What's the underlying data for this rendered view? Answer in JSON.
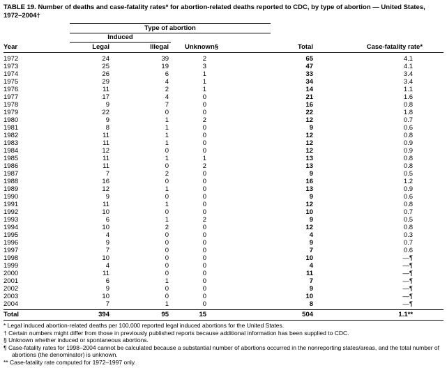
{
  "title": "TABLE 19. Number of deaths and case-fatality rates* for abortion-related deaths reported to CDC, by type of abortion — United States, 1972–2004†",
  "table": {
    "spanner_top": "Type of abortion",
    "spanner_induced": "Induced",
    "columns": [
      "Year",
      "Legal",
      "Illegal",
      "Unknown§",
      "Total",
      "Case-fatality rate*"
    ],
    "rows": [
      [
        "1972",
        "24",
        "39",
        "2",
        "65",
        "4.1"
      ],
      [
        "1973",
        "25",
        "19",
        "3",
        "47",
        "4.1"
      ],
      [
        "1974",
        "26",
        "6",
        "1",
        "33",
        "3.4"
      ],
      [
        "1975",
        "29",
        "4",
        "1",
        "34",
        "3.4"
      ],
      [
        "1976",
        "11",
        "2",
        "1",
        "14",
        "1.1"
      ],
      [
        "1977",
        "17",
        "4",
        "0",
        "21",
        "1.6"
      ],
      [
        "1978",
        "9",
        "7",
        "0",
        "16",
        "0.8"
      ],
      [
        "1979",
        "22",
        "0",
        "0",
        "22",
        "1.8"
      ],
      [
        "1980",
        "9",
        "1",
        "2",
        "12",
        "0.7"
      ],
      [
        "1981",
        "8",
        "1",
        "0",
        "9",
        "0.6"
      ],
      [
        "1982",
        "11",
        "1",
        "0",
        "12",
        "0.8"
      ],
      [
        "1983",
        "11",
        "1",
        "0",
        "12",
        "0.9"
      ],
      [
        "1984",
        "12",
        "0",
        "0",
        "12",
        "0.9"
      ],
      [
        "1985",
        "11",
        "1",
        "1",
        "13",
        "0.8"
      ],
      [
        "1986",
        "11",
        "0",
        "2",
        "13",
        "0.8"
      ],
      [
        "1987",
        "7",
        "2",
        "0",
        "9",
        "0.5"
      ],
      [
        "1988",
        "16",
        "0",
        "0",
        "16",
        "1.2"
      ],
      [
        "1989",
        "12",
        "1",
        "0",
        "13",
        "0.9"
      ],
      [
        "1990",
        "9",
        "0",
        "0",
        "9",
        "0.6"
      ],
      [
        "1991",
        "11",
        "1",
        "0",
        "12",
        "0.8"
      ],
      [
        "1992",
        "10",
        "0",
        "0",
        "10",
        "0.7"
      ],
      [
        "1993",
        "6",
        "1",
        "2",
        "9",
        "0.5"
      ],
      [
        "1994",
        "10",
        "2",
        "0",
        "12",
        "0.8"
      ],
      [
        "1995",
        "4",
        "0",
        "0",
        "4",
        "0.3"
      ],
      [
        "1996",
        "9",
        "0",
        "0",
        "9",
        "0.7"
      ],
      [
        "1997",
        "7",
        "0",
        "0",
        "7",
        "0.6"
      ],
      [
        "1998",
        "10",
        "0",
        "0",
        "10",
        "—¶"
      ],
      [
        "1999",
        "4",
        "0",
        "0",
        "4",
        "—¶"
      ],
      [
        "2000",
        "11",
        "0",
        "0",
        "11",
        "—¶"
      ],
      [
        "2001",
        "6",
        "1",
        "0",
        "7",
        "—¶"
      ],
      [
        "2002",
        "9",
        "0",
        "0",
        "9",
        "—¶"
      ],
      [
        "2003",
        "10",
        "0",
        "0",
        "10",
        "—¶"
      ],
      [
        "2004",
        "7",
        "1",
        "0",
        "8",
        "—¶"
      ]
    ],
    "total_row": [
      "Total",
      "394",
      "95",
      "15",
      "504",
      "1.1**"
    ]
  },
  "footnotes": [
    {
      "marker": "*",
      "text": "Legal induced abortion-related deaths per 100,000 reported legal induced abortions for the United States."
    },
    {
      "marker": "†",
      "text": "Certain numbers might differ from those in previously published reports because additional information has been supplied to CDC."
    },
    {
      "marker": "§",
      "text": "Unknown whether induced or spontaneous abortions."
    },
    {
      "marker": "¶",
      "text": "Case-fatality rates for 1998–2004 cannot be calculated because a substantial number of abortions occurred in the nonreporting states/areas, and the total number of abortions (the denominator) is unknown."
    },
    {
      "marker": "**",
      "text": "Case-fatality rate computed for 1972–1997 only."
    }
  ]
}
